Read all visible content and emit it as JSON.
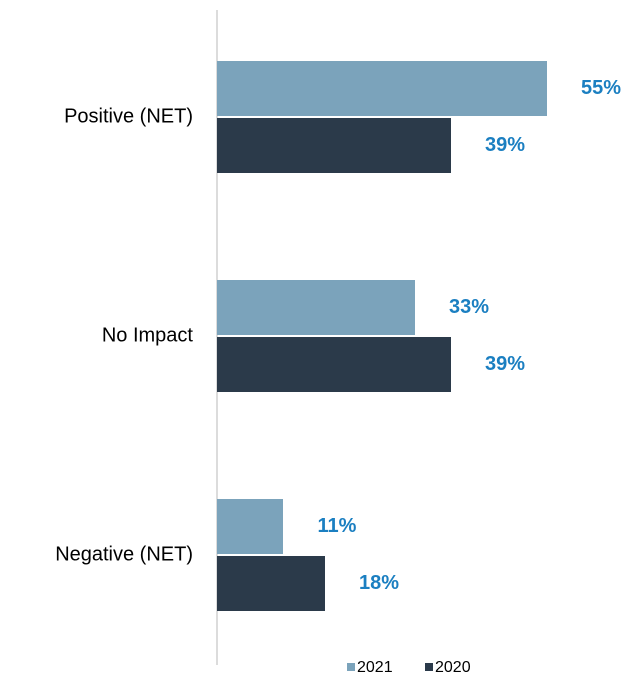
{
  "chart_data": {
    "type": "barh",
    "categories": [
      "Positive (NET)",
      "No Impact",
      "Negative (NET)"
    ],
    "series": [
      {
        "name": "2021",
        "color": "#7ba3bb",
        "values": [
          55,
          33,
          11
        ],
        "value_labels": [
          "55%",
          "33%",
          "11%"
        ]
      },
      {
        "name": "2020",
        "color": "#2b3a4a",
        "values": [
          39,
          39,
          18
        ],
        "value_labels": [
          "39%",
          "39%",
          "18%"
        ]
      }
    ],
    "xlim": [
      0,
      65
    ],
    "legend": "bottom"
  }
}
